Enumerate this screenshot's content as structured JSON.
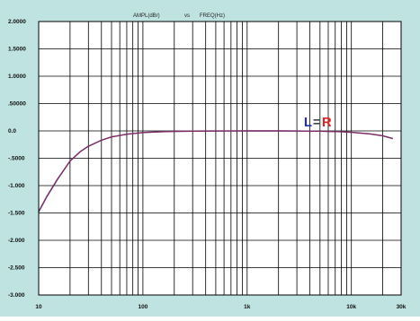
{
  "chart_data": {
    "type": "line",
    "title_left": "AMPL(dBr)",
    "title_vs": "vs",
    "title_right": "FREQ(Hz)",
    "x_scale": "log",
    "xlim": [
      10,
      30000
    ],
    "ylim": [
      -3.0,
      2.0
    ],
    "x_ticks": [
      {
        "value": 10,
        "label": "10"
      },
      {
        "value": 100,
        "label": "100"
      },
      {
        "value": 1000,
        "label": "1k"
      },
      {
        "value": 10000,
        "label": "10k"
      },
      {
        "value": 30000,
        "label": "30k"
      }
    ],
    "y_ticks": [
      {
        "value": 2.0,
        "label": "2.0000"
      },
      {
        "value": 1.5,
        "label": "1.5000"
      },
      {
        "value": 1.0,
        "label": "1.0000"
      },
      {
        "value": 0.5,
        "label": ".50000"
      },
      {
        "value": 0.0,
        "label": "0.0"
      },
      {
        "value": -0.5,
        "label": "-.5000"
      },
      {
        "value": -1.0,
        "label": "-1.000"
      },
      {
        "value": -1.5,
        "label": "-1.500"
      },
      {
        "value": -2.0,
        "label": "-2.000"
      },
      {
        "value": -2.5,
        "label": "-2.500"
      },
      {
        "value": -3.0,
        "label": "-3.000"
      }
    ],
    "grid": true,
    "annotation": {
      "left": "L",
      "equals": "=",
      "right": "R",
      "x": 3500,
      "y": 0.08
    },
    "series": [
      {
        "color": "#2233aa",
        "x": [
          10,
          12,
          15,
          20,
          25,
          30,
          40,
          50,
          70,
          100,
          150,
          200,
          300,
          500,
          1000,
          2000,
          5000,
          8000,
          10000,
          15000,
          20000,
          25000
        ],
        "y": [
          -1.48,
          -1.2,
          -0.9,
          -0.55,
          -0.38,
          -0.28,
          -0.17,
          -0.11,
          -0.06,
          -0.03,
          -0.015,
          -0.008,
          -0.004,
          -0.002,
          0.0,
          0.0,
          -0.005,
          -0.015,
          -0.025,
          -0.055,
          -0.09,
          -0.14
        ]
      },
      {
        "color": "#cc2222",
        "x": [
          10,
          12,
          15,
          20,
          25,
          30,
          40,
          50,
          70,
          100,
          150,
          200,
          300,
          500,
          1000,
          2000,
          5000,
          8000,
          10000,
          15000,
          20000,
          25000
        ],
        "y": [
          -1.47,
          -1.19,
          -0.89,
          -0.55,
          -0.38,
          -0.28,
          -0.17,
          -0.11,
          -0.06,
          -0.03,
          -0.015,
          -0.008,
          -0.004,
          -0.002,
          0.0,
          0.0,
          -0.005,
          -0.015,
          -0.025,
          -0.055,
          -0.09,
          -0.14
        ]
      }
    ],
    "colors": {
      "background": "#bfe3e0",
      "plot_bg": "#ffffff",
      "grid": "#000000",
      "label_left": "#2233aa",
      "label_right": "#dd2222"
    }
  }
}
